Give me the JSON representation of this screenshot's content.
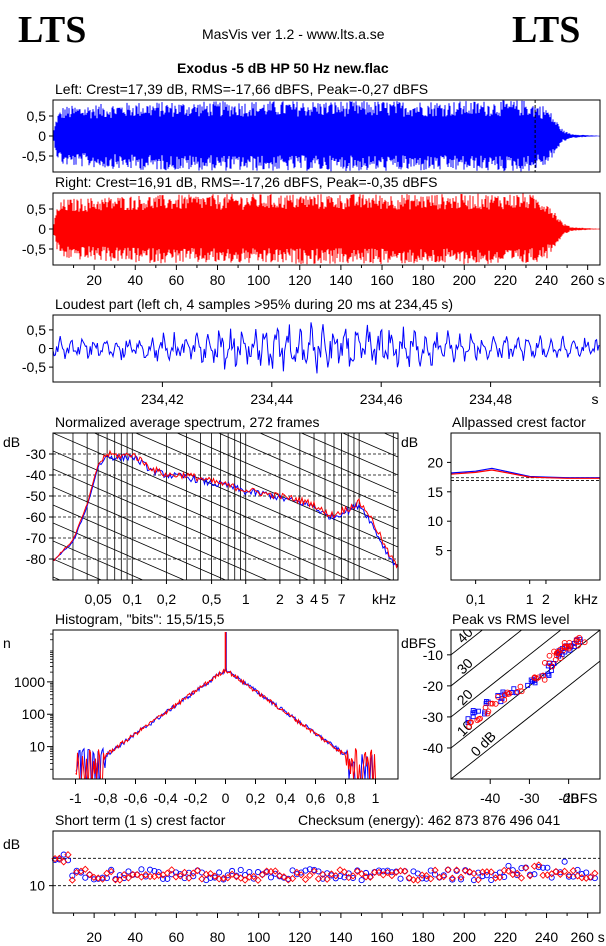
{
  "header": {
    "logo_left": "LTS",
    "logo_right": "LTS",
    "app_title": "MasVis ver 1.2 - www.lts.a.se",
    "file_title": "Exodus -5 dB HP 50 Hz new.flac"
  },
  "colors": {
    "left": "#0000ff",
    "right": "#ff0000",
    "axis": "#000000"
  },
  "chart_data": [
    {
      "id": "left_waveform",
      "type": "area",
      "title": "Left: Crest=17,39 dB, RMS=-17,66 dBFS, Peak=-0,27 dBFS",
      "color": "#0000ff",
      "ylim": [
        -0.9,
        0.9
      ],
      "yticks": [
        "0,5",
        "0",
        "-0,5"
      ],
      "ytick_values": [
        0.5,
        0,
        -0.5
      ],
      "xlim": [
        0,
        266
      ],
      "marker_x": 234.45,
      "envelope_x": [
        0,
        2,
        5,
        40,
        100,
        150,
        200,
        230,
        240,
        244,
        248,
        252,
        262,
        266
      ],
      "envelope_y": [
        0.05,
        0.55,
        0.75,
        0.85,
        0.88,
        0.88,
        0.88,
        0.9,
        0.75,
        0.45,
        0.15,
        0.05,
        0.015,
        0.01
      ]
    },
    {
      "id": "right_waveform",
      "type": "area",
      "title": "Right: Crest=16,91 dB, RMS=-17,26 dBFS, Peak=-0,35 dBFS",
      "color": "#ff0000",
      "ylim": [
        -0.9,
        0.9
      ],
      "yticks": [
        "0,5",
        "0",
        "-0,5"
      ],
      "ytick_values": [
        0.5,
        0,
        -0.5
      ],
      "xlim": [
        0,
        266
      ],
      "xticks": [
        "20",
        "40",
        "60",
        "80",
        "100",
        "120",
        "140",
        "160",
        "180",
        "200",
        "220",
        "240",
        "260 s"
      ],
      "xtick_values": [
        20,
        40,
        60,
        80,
        100,
        120,
        140,
        160,
        180,
        200,
        220,
        240,
        260
      ],
      "envelope_x": [
        0,
        2,
        5,
        40,
        100,
        150,
        200,
        230,
        240,
        244,
        248,
        252,
        262,
        266
      ],
      "envelope_y": [
        0.05,
        0.55,
        0.75,
        0.85,
        0.88,
        0.88,
        0.88,
        0.9,
        0.75,
        0.45,
        0.15,
        0.05,
        0.015,
        0.01
      ]
    },
    {
      "id": "loudest_part",
      "type": "line",
      "title": "Loudest part (left  ch, 4 samples >95% during 20 ms at 234,45 s)",
      "color": "#0000ff",
      "ylim": [
        -0.9,
        0.9
      ],
      "yticks": [
        "0,5",
        "0",
        "-0,5"
      ],
      "ytick_values": [
        0.5,
        0,
        -0.5
      ],
      "xlim": [
        234.4,
        234.5
      ],
      "xticks": [
        "234,42",
        "234,44",
        "234,46",
        "234,48",
        "s"
      ],
      "xtick_values": [
        234.42,
        234.44,
        234.46,
        234.48,
        234.5
      ]
    },
    {
      "id": "spectrum",
      "type": "line",
      "title": "Normalized average spectrum, 272 frames",
      "ylabel": "dB",
      "xlabel_unit": "kHz",
      "xscale": "log",
      "xlim": [
        0.02,
        22
      ],
      "ylim": [
        -90,
        -20
      ],
      "yticks": [
        "-30",
        "-40",
        "-50",
        "-60",
        "-70",
        "-80"
      ],
      "ytick_values": [
        -30,
        -40,
        -50,
        -60,
        -70,
        -80
      ],
      "xticks": [
        "0,05",
        "0,1",
        "0,2",
        "0,5",
        "1",
        "2",
        "3",
        "4",
        "5",
        "7"
      ],
      "xtick_values": [
        0.05,
        0.1,
        0.2,
        0.5,
        1,
        2,
        3,
        4,
        5,
        7
      ],
      "series": [
        {
          "color": "#0000ff",
          "x": [
            0.02,
            0.03,
            0.04,
            0.05,
            0.06,
            0.08,
            0.1,
            0.15,
            0.2,
            0.3,
            0.5,
            0.7,
            1,
            1.5,
            2,
            3,
            4,
            5,
            6,
            7,
            8,
            10,
            12,
            15,
            18,
            22
          ],
          "y": [
            -81,
            -72,
            -55,
            -36,
            -31,
            -32,
            -31,
            -38,
            -40,
            -41,
            -44,
            -45,
            -48,
            -49,
            -51,
            -53,
            -55,
            -59,
            -60,
            -58,
            -57,
            -54,
            -60,
            -70,
            -78,
            -84
          ]
        },
        {
          "color": "#ff0000",
          "x": [
            0.02,
            0.03,
            0.04,
            0.05,
            0.06,
            0.08,
            0.1,
            0.15,
            0.2,
            0.3,
            0.5,
            0.7,
            1,
            1.5,
            2,
            3,
            4,
            5,
            6,
            7,
            8,
            10,
            12,
            15,
            18,
            22
          ],
          "y": [
            -81,
            -71,
            -54,
            -35,
            -30,
            -31,
            -30,
            -37,
            -40,
            -40,
            -43,
            -45,
            -47,
            -49,
            -50,
            -52,
            -54,
            -58,
            -59,
            -57,
            -56,
            -53,
            -58,
            -68,
            -77,
            -84
          ]
        }
      ]
    },
    {
      "id": "allpassed_crest",
      "type": "line",
      "title": "Allpassed crest factor",
      "ylabel": "dB",
      "xlabel_unit": "kHz",
      "xscale": "log",
      "xlim": [
        0.035,
        20
      ],
      "ylim": [
        0,
        25
      ],
      "yticks": [
        "20",
        "15",
        "10",
        "5"
      ],
      "ytick_values": [
        20,
        15,
        10,
        5
      ],
      "xticks": [
        "0,1",
        "1",
        "2"
      ],
      "xtick_values": [
        0.1,
        1,
        2
      ],
      "reference_lines": [
        17.39,
        16.91
      ],
      "series": [
        {
          "color": "#0000ff",
          "x": [
            0.035,
            0.1,
            0.2,
            0.4,
            1,
            2,
            5,
            20
          ],
          "y": [
            18.2,
            18.5,
            19.0,
            18.4,
            17.6,
            17.5,
            17.4,
            17.4
          ]
        },
        {
          "color": "#ff0000",
          "x": [
            0.035,
            0.1,
            0.2,
            0.4,
            1,
            2,
            5,
            20
          ],
          "y": [
            18.0,
            18.3,
            18.7,
            18.2,
            17.5,
            17.4,
            17.3,
            17.3
          ]
        }
      ]
    },
    {
      "id": "histogram",
      "type": "line",
      "title": "Histogram, \"bits\": 15,5/15,5",
      "ylabel": "n",
      "yscale": "log",
      "ylim": [
        1,
        40000
      ],
      "xlim": [
        -1.15,
        1.15
      ],
      "yticks": [
        "1000",
        "100",
        "10"
      ],
      "ytick_values": [
        1000,
        100,
        10
      ],
      "xticks": [
        "-1",
        "-0,8",
        "-0,6",
        "-0,4",
        "-0,2",
        "0",
        "0,2",
        "0,4",
        "0,6",
        "0,8",
        "1"
      ],
      "xtick_values": [
        -1,
        -0.8,
        -0.6,
        -0.4,
        -0.2,
        0,
        0.2,
        0.4,
        0.6,
        0.8,
        1
      ]
    },
    {
      "id": "peak_vs_rms",
      "type": "scatter",
      "title": "Peak vs RMS level",
      "ylabel": "dBFS",
      "xlabel_unit": "dBFS",
      "xlim": [
        -50,
        -12
      ],
      "ylim": [
        -50,
        -2
      ],
      "yticks": [
        "-10",
        "-20",
        "-30",
        "-40"
      ],
      "ytick_values": [
        -10,
        -20,
        -30,
        -40
      ],
      "xticks": [
        "-40",
        "-30",
        "-20"
      ],
      "xtick_values": [
        -40,
        -30,
        -20
      ],
      "diagonal_labels": [
        "0 dB",
        "10",
        "20",
        "30",
        "40"
      ],
      "diagonal_offsets": [
        0,
        10,
        20,
        30,
        40
      ],
      "series": [
        {
          "color": "#0000ff",
          "x": [
            -45,
            -44,
            -42,
            -40,
            -38,
            -36,
            -34,
            -30,
            -28,
            -26,
            -25,
            -24,
            -23,
            -22,
            -21,
            -20,
            -19,
            -18
          ],
          "y": [
            -31,
            -29,
            -28,
            -26,
            -24,
            -23,
            -22,
            -19,
            -18,
            -17,
            -14,
            -13,
            -10,
            -9,
            -8,
            -8,
            -7,
            -6
          ]
        },
        {
          "color": "#ff0000",
          "x": [
            -45,
            -43,
            -41,
            -39,
            -37,
            -35,
            -33,
            -29,
            -27,
            -25,
            -24,
            -23,
            -22,
            -21,
            -20,
            -19,
            -18,
            -17
          ],
          "y": [
            -32,
            -30,
            -28,
            -25,
            -24,
            -22,
            -21,
            -18,
            -17,
            -13,
            -11,
            -10,
            -9,
            -8,
            -7,
            -7,
            -6,
            -5
          ]
        }
      ]
    },
    {
      "id": "short_term_crest",
      "type": "scatter",
      "title": "Short term (1 s) crest factor",
      "checksum": "Checksum (energy):   462 873 876 496 041",
      "ylabel": "dB",
      "xlim": [
        0,
        266
      ],
      "ylim": [
        0,
        30
      ],
      "yticks": [
        "10"
      ],
      "ytick_values": [
        10
      ],
      "reference_lines": [
        17.39,
        16.91
      ],
      "xticks": [
        "20",
        "40",
        "60",
        "80",
        "100",
        "120",
        "140",
        "160",
        "180",
        "200",
        "220",
        "240",
        "260 s"
      ],
      "xtick_values": [
        20,
        40,
        60,
        80,
        100,
        120,
        140,
        160,
        180,
        200,
        220,
        240,
        260
      ],
      "typical_value": 14
    }
  ]
}
